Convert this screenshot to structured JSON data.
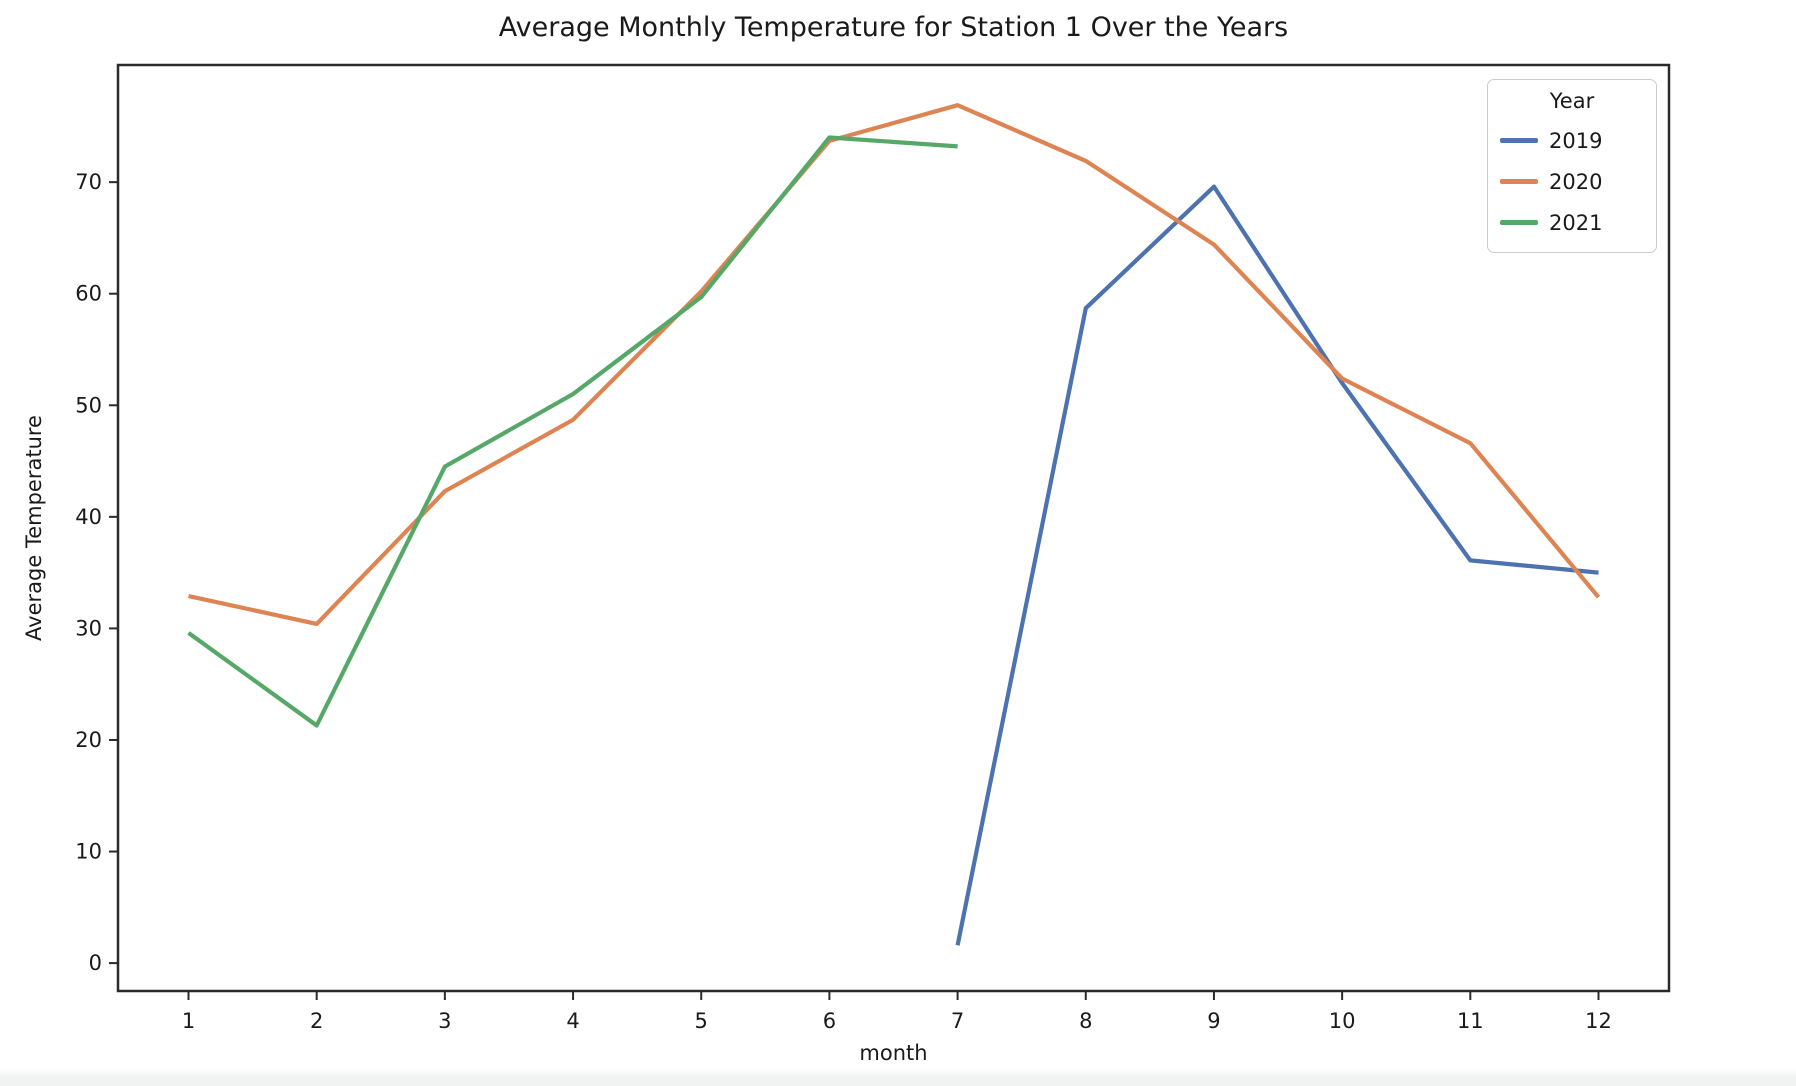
{
  "chart_data": {
    "type": "line",
    "title": "Average Monthly Temperature for Station 1 Over the Years",
    "xlabel": "month",
    "ylabel": "Average Temperature",
    "legend_title": "Year",
    "legend_position": "upper right",
    "grid": false,
    "xlim": [
      0.45,
      12.55
    ],
    "ylim": [
      -2.5,
      80.5
    ],
    "xticks": [
      1,
      2,
      3,
      4,
      5,
      6,
      7,
      8,
      9,
      10,
      11,
      12
    ],
    "yticks": [
      0,
      10,
      20,
      30,
      40,
      50,
      60,
      70
    ],
    "series": [
      {
        "name": "2019",
        "color": "#4c72b0",
        "x": [
          7,
          8,
          9,
          10,
          11,
          12
        ],
        "y": [
          1.6,
          58.7,
          69.6,
          52.0,
          36.1,
          35.0
        ]
      },
      {
        "name": "2020",
        "color": "#dd8452",
        "x": [
          1,
          2,
          3,
          4,
          5,
          6,
          7,
          8,
          9,
          10,
          11,
          12
        ],
        "y": [
          32.9,
          30.4,
          42.3,
          48.7,
          60.2,
          73.7,
          76.9,
          71.9,
          64.4,
          52.4,
          46.6,
          32.8
        ]
      },
      {
        "name": "2021",
        "color": "#55a868",
        "x": [
          1,
          2,
          3,
          4,
          5,
          6,
          7
        ],
        "y": [
          29.6,
          21.3,
          44.5,
          51.0,
          59.7,
          74.0,
          73.2
        ]
      }
    ],
    "axis_color": "#2b2b2b",
    "tick_label_color": "#1a1a1a"
  }
}
